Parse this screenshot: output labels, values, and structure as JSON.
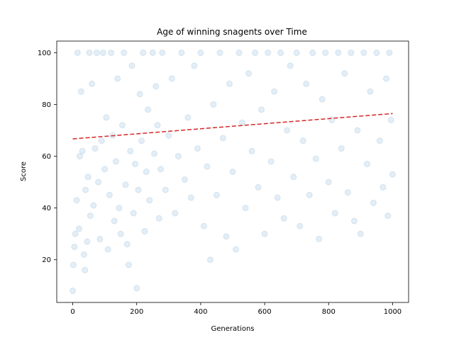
{
  "chart_data": {
    "type": "scatter",
    "title": "Age of winning snagents over Time",
    "xlabel": "Generations",
    "ylabel": "Score",
    "xlim": [
      -50,
      1050
    ],
    "ylim": [
      3.5,
      104.5
    ],
    "xticks": [
      0,
      200,
      400,
      600,
      800,
      1000
    ],
    "yticks": [
      20,
      40,
      60,
      80,
      100
    ],
    "grid": false,
    "legend": "none",
    "point_color": "#1f77b4",
    "point_alpha": 0.12,
    "trend_color": "#d62728",
    "trend_style": "dashed",
    "trend_line": {
      "x": [
        0,
        1000
      ],
      "y": [
        66.7,
        76.5
      ]
    },
    "summary": {
      "x_range": [
        0,
        1000
      ],
      "y_range": [
        8,
        100
      ],
      "cap_value": 100
    },
    "series": [
      {
        "values": [
          [
            0,
            8
          ],
          [
            2,
            18
          ],
          [
            5,
            25
          ],
          [
            8,
            30
          ],
          [
            12,
            43
          ],
          [
            15,
            100
          ],
          [
            20,
            32
          ],
          [
            22,
            60
          ],
          [
            26,
            85
          ],
          [
            30,
            62
          ],
          [
            35,
            22
          ],
          [
            38,
            16
          ],
          [
            40,
            47
          ],
          [
            45,
            27
          ],
          [
            48,
            52
          ],
          [
            52,
            100
          ],
          [
            55,
            37
          ],
          [
            60,
            88
          ],
          [
            65,
            41
          ],
          [
            70,
            63
          ],
          [
            75,
            100
          ],
          [
            80,
            50
          ],
          [
            85,
            28
          ],
          [
            90,
            66
          ],
          [
            95,
            100
          ],
          [
            100,
            55
          ],
          [
            105,
            75
          ],
          [
            110,
            24
          ],
          [
            115,
            45
          ],
          [
            120,
            100
          ],
          [
            125,
            68
          ],
          [
            130,
            35
          ],
          [
            135,
            58
          ],
          [
            140,
            90
          ],
          [
            145,
            40
          ],
          [
            150,
            30
          ],
          [
            155,
            72
          ],
          [
            160,
            100
          ],
          [
            165,
            49
          ],
          [
            170,
            26
          ],
          [
            175,
            18
          ],
          [
            180,
            62
          ],
          [
            185,
            95
          ],
          [
            190,
            38
          ],
          [
            195,
            57
          ],
          [
            200,
            9
          ],
          [
            205,
            47
          ],
          [
            210,
            84
          ],
          [
            215,
            66
          ],
          [
            220,
            100
          ],
          [
            225,
            31
          ],
          [
            230,
            54
          ],
          [
            235,
            78
          ],
          [
            240,
            43
          ],
          [
            250,
            100
          ],
          [
            255,
            61
          ],
          [
            260,
            87
          ],
          [
            265,
            72
          ],
          [
            270,
            36
          ],
          [
            275,
            55
          ],
          [
            280,
            100
          ],
          [
            290,
            47
          ],
          [
            300,
            68
          ],
          [
            310,
            90
          ],
          [
            320,
            38
          ],
          [
            330,
            60
          ],
          [
            340,
            100
          ],
          [
            350,
            51
          ],
          [
            360,
            75
          ],
          [
            370,
            44
          ],
          [
            380,
            95
          ],
          [
            390,
            63
          ],
          [
            400,
            100
          ],
          [
            410,
            33
          ],
          [
            420,
            56
          ],
          [
            430,
            20
          ],
          [
            440,
            80
          ],
          [
            450,
            45
          ],
          [
            460,
            100
          ],
          [
            470,
            67
          ],
          [
            480,
            29
          ],
          [
            490,
            88
          ],
          [
            500,
            54
          ],
          [
            510,
            24
          ],
          [
            520,
            100
          ],
          [
            530,
            73
          ],
          [
            540,
            40
          ],
          [
            550,
            92
          ],
          [
            560,
            62
          ],
          [
            570,
            100
          ],
          [
            580,
            48
          ],
          [
            590,
            78
          ],
          [
            600,
            30
          ],
          [
            610,
            100
          ],
          [
            620,
            58
          ],
          [
            630,
            85
          ],
          [
            640,
            44
          ],
          [
            650,
            100
          ],
          [
            660,
            36
          ],
          [
            670,
            70
          ],
          [
            680,
            95
          ],
          [
            690,
            52
          ],
          [
            700,
            100
          ],
          [
            710,
            33
          ],
          [
            720,
            66
          ],
          [
            730,
            88
          ],
          [
            740,
            45
          ],
          [
            750,
            100
          ],
          [
            760,
            59
          ],
          [
            770,
            28
          ],
          [
            780,
            82
          ],
          [
            790,
            100
          ],
          [
            800,
            50
          ],
          [
            810,
            74
          ],
          [
            820,
            38
          ],
          [
            830,
            100
          ],
          [
            840,
            63
          ],
          [
            850,
            92
          ],
          [
            860,
            46
          ],
          [
            870,
            100
          ],
          [
            880,
            35
          ],
          [
            890,
            70
          ],
          [
            900,
            30
          ],
          [
            910,
            100
          ],
          [
            920,
            57
          ],
          [
            930,
            85
          ],
          [
            940,
            42
          ],
          [
            950,
            100
          ],
          [
            960,
            66
          ],
          [
            970,
            48
          ],
          [
            980,
            90
          ],
          [
            985,
            37
          ],
          [
            990,
            100
          ],
          [
            995,
            74
          ],
          [
            1000,
            53
          ]
        ]
      }
    ]
  }
}
